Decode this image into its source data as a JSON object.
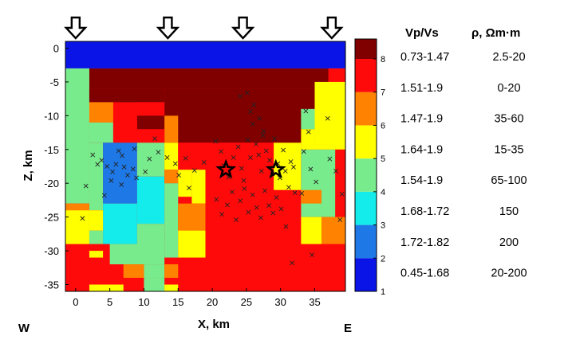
{
  "chart_data": {
    "type": "heatmap",
    "xlabel": "X, km",
    "ylabel": "Z, km",
    "xlim": [
      -1.5,
      39.5
    ],
    "ylim": [
      -36,
      1
    ],
    "xticks": [
      0,
      5,
      10,
      15,
      20,
      25,
      30,
      35
    ],
    "yticks": [
      0,
      -5,
      -10,
      -15,
      -20,
      -25,
      -30,
      -35
    ],
    "west_label": "W",
    "east_label": "E",
    "arrows_x": [
      0,
      13.5,
      24.5,
      37.5
    ],
    "colorbar": {
      "min": 1,
      "max": 8.6,
      "ticks": [
        1,
        2,
        3,
        4,
        5,
        6,
        7,
        8
      ],
      "classes": [
        {
          "from": 1,
          "to": 2,
          "color": "#0a14e6"
        },
        {
          "from": 2,
          "to": 3,
          "color": "#1e78e6"
        },
        {
          "from": 3,
          "to": 4,
          "color": "#14ecec"
        },
        {
          "from": 4,
          "to": 5,
          "color": "#78eb8c"
        },
        {
          "from": 5,
          "to": 6,
          "color": "#ffff00"
        },
        {
          "from": 6,
          "to": 7,
          "color": "#ff8200"
        },
        {
          "from": 7,
          "to": 8,
          "color": "#ff0a0a"
        },
        {
          "from": 8,
          "to": 8.6,
          "color": "#800000"
        }
      ]
    },
    "cells": [
      {
        "x": [
          -1.5,
          39.5
        ],
        "z": [
          -36,
          -3
        ],
        "v": 7
      },
      {
        "x": [
          -1.5,
          39.5
        ],
        "z": [
          -3,
          1
        ],
        "v": 1
      },
      {
        "x": [
          37,
          39.5
        ],
        "z": [
          -5,
          -3
        ],
        "v": 7
      },
      {
        "x": [
          2,
          37
        ],
        "z": [
          -6,
          -3
        ],
        "v": 8
      },
      {
        "x": [
          -1.5,
          2
        ],
        "z": [
          -23,
          -3
        ],
        "v": 4
      },
      {
        "x": [
          2,
          13
        ],
        "z": [
          -8,
          -6
        ],
        "v": 8
      },
      {
        "x": [
          13,
          36
        ],
        "z": [
          -14,
          -6
        ],
        "v": 8
      },
      {
        "x": [
          2,
          5.5
        ],
        "z": [
          -11,
          -8
        ],
        "v": 6
      },
      {
        "x": [
          9,
          13
        ],
        "z": [
          -10,
          -8
        ],
        "v": 7
      },
      {
        "x": [
          9,
          13
        ],
        "z": [
          -12,
          -10
        ],
        "v": 8
      },
      {
        "x": [
          13,
          15
        ],
        "z": [
          -14,
          -10
        ],
        "v": 6
      },
      {
        "x": [
          2,
          5.5
        ],
        "z": [
          -14,
          -11
        ],
        "v": 4
      },
      {
        "x": [
          5.5,
          9
        ],
        "z": [
          -14,
          -11
        ],
        "v": 7
      },
      {
        "x": [
          9,
          13
        ],
        "z": [
          -14,
          -12
        ],
        "v": 7
      },
      {
        "x": [
          2,
          4
        ],
        "z": [
          -24,
          -14
        ],
        "v": 4
      },
      {
        "x": [
          4,
          9
        ],
        "z": [
          -23,
          -14
        ],
        "v": 2
      },
      {
        "x": [
          9,
          13
        ],
        "z": [
          -19,
          -14
        ],
        "v": 4
      },
      {
        "x": [
          13,
          15
        ],
        "z": [
          -18,
          -14
        ],
        "v": 5
      },
      {
        "x": [
          15,
          19
        ],
        "z": [
          -18,
          -14
        ],
        "v": 7
      },
      {
        "x": [
          19,
          29
        ],
        "z": [
          -19,
          -14
        ],
        "v": 7
      },
      {
        "x": [
          29,
          33
        ],
        "z": [
          -21,
          -14
        ],
        "v": 5
      },
      {
        "x": [
          33,
          38
        ],
        "z": [
          -25,
          -15
        ],
        "v": 4
      },
      {
        "x": [
          9,
          13
        ],
        "z": [
          -26,
          -19
        ],
        "v": 3
      },
      {
        "x": [
          13,
          15
        ],
        "z": [
          -20,
          -18
        ],
        "v": 6
      },
      {
        "x": [
          15,
          17
        ],
        "z": [
          -22,
          -18
        ],
        "v": 5
      },
      {
        "x": [
          13,
          15
        ],
        "z": [
          -31,
          -20
        ],
        "v": 4
      },
      {
        "x": [
          17,
          19
        ],
        "z": [
          -23,
          -18
        ],
        "v": 5
      },
      {
        "x": [
          33,
          36
        ],
        "z": [
          -23,
          -21
        ],
        "v": 6
      },
      {
        "x": [
          -1.5,
          2
        ],
        "z": [
          -24,
          -23
        ],
        "v": 6
      },
      {
        "x": [
          4,
          9
        ],
        "z": [
          -29,
          -23
        ],
        "v": 3
      },
      {
        "x": [
          -1.5,
          2
        ],
        "z": [
          -29,
          -24
        ],
        "v": 5
      },
      {
        "x": [
          2,
          4
        ],
        "z": [
          -27,
          -24
        ],
        "v": 5
      },
      {
        "x": [
          15,
          19
        ],
        "z": [
          -27,
          -23
        ],
        "v": 6
      },
      {
        "x": [
          9,
          13
        ],
        "z": [
          -30,
          -26
        ],
        "v": 4
      },
      {
        "x": [
          2,
          4
        ],
        "z": [
          -29,
          -27
        ],
        "v": 4
      },
      {
        "x": [
          15,
          19
        ],
        "z": [
          -31,
          -27
        ],
        "v": 5
      },
      {
        "x": [
          33,
          36
        ],
        "z": [
          -29,
          -25
        ],
        "v": 5
      },
      {
        "x": [
          36,
          39.5
        ],
        "z": [
          -29,
          -25
        ],
        "v": 6
      },
      {
        "x": [
          33,
          35
        ],
        "z": [
          -12,
          -9
        ],
        "v": 4
      },
      {
        "x": [
          35,
          39.5
        ],
        "z": [
          -15,
          -5
        ],
        "v": 5
      },
      {
        "x": [
          33,
          35
        ],
        "z": [
          -15,
          -12
        ],
        "v": 5
      },
      {
        "x": [
          2,
          4
        ],
        "z": [
          -31,
          -30
        ],
        "v": 5
      },
      {
        "x": [
          5,
          13
        ],
        "z": [
          -32,
          -29
        ],
        "v": 4
      },
      {
        "x": [
          10,
          13
        ],
        "z": [
          -34,
          -32
        ],
        "v": 4
      },
      {
        "x": [
          7,
          10
        ],
        "z": [
          -34,
          -32
        ],
        "v": 6
      },
      {
        "x": [
          13,
          15
        ],
        "z": [
          -34,
          -32
        ],
        "v": 6
      },
      {
        "x": [
          2,
          7
        ],
        "z": [
          -36,
          -35
        ],
        "v": 5
      },
      {
        "x": [
          10,
          13
        ],
        "z": [
          -36,
          -34
        ],
        "v": 4
      },
      {
        "x": [
          13,
          15
        ],
        "z": [
          -36,
          -35
        ],
        "v": 5
      }
    ],
    "events": [
      [
        2.5,
        -15.8
      ],
      [
        3.2,
        -17.2
      ],
      [
        3.8,
        -16.6
      ],
      [
        4.6,
        -17.5
      ],
      [
        5.4,
        -18.3
      ],
      [
        5.9,
        -17.2
      ],
      [
        6.8,
        -15.9
      ],
      [
        7.1,
        -17.6
      ],
      [
        7.6,
        -18.8
      ],
      [
        8.4,
        -17.9
      ],
      [
        5.2,
        -19.6
      ],
      [
        6.7,
        -20.2
      ],
      [
        8.9,
        -19.2
      ],
      [
        10.2,
        -18.3
      ],
      [
        10.8,
        -16.4
      ],
      [
        11.6,
        -13.4
      ],
      [
        12.1,
        -15.4
      ],
      [
        13.4,
        -16.2
      ],
      [
        14.6,
        -17.1
      ],
      [
        15.1,
        -18.8
      ],
      [
        1.5,
        -20.4
      ],
      [
        1,
        -25.2
      ],
      [
        8.6,
        -14.9
      ],
      [
        6.3,
        -15.2
      ],
      [
        4.2,
        -21.8
      ],
      [
        20.5,
        -13.8
      ],
      [
        21.3,
        -15.3
      ],
      [
        21.7,
        -17.4
      ],
      [
        22.4,
        -19.1
      ],
      [
        23.1,
        -16.2
      ],
      [
        23.8,
        -14.6
      ],
      [
        24.3,
        -17.8
      ],
      [
        24.6,
        -19.6
      ],
      [
        25.2,
        -13.6
      ],
      [
        25.6,
        -16.2
      ],
      [
        25.9,
        -11.2
      ],
      [
        26.4,
        -14.2
      ],
      [
        26.8,
        -15.8
      ],
      [
        27.2,
        -18.2
      ],
      [
        27.5,
        -12.3
      ],
      [
        27.9,
        -15.2
      ],
      [
        28.4,
        -16.6
      ],
      [
        28.8,
        -18.6
      ],
      [
        29.1,
        -13.4
      ],
      [
        29.6,
        -17.1
      ],
      [
        29.9,
        -19.2
      ],
      [
        30.4,
        -15.1
      ],
      [
        30.7,
        -18.2
      ],
      [
        31.2,
        -20.6
      ],
      [
        31.5,
        -16.8
      ],
      [
        31.9,
        -17.6
      ],
      [
        32.1,
        -21.4
      ],
      [
        20.6,
        -22.4
      ],
      [
        21.4,
        -24.6
      ],
      [
        22.2,
        -23.2
      ],
      [
        22.9,
        -21.3
      ],
      [
        23.5,
        -25.4
      ],
      [
        24.1,
        -22.6
      ],
      [
        24.7,
        -20.8
      ],
      [
        25.3,
        -24.3
      ],
      [
        25.9,
        -21.7
      ],
      [
        26.5,
        -23.6
      ],
      [
        27.1,
        -25.1
      ],
      [
        27.7,
        -21.1
      ],
      [
        28.3,
        -23.3
      ],
      [
        28.9,
        -24.4
      ],
      [
        29.4,
        -22.1
      ],
      [
        30.1,
        -23.8
      ],
      [
        30.8,
        -26.4
      ],
      [
        25.1,
        -6.6
      ],
      [
        26.1,
        -8.4
      ],
      [
        25.6,
        -9.4
      ],
      [
        26.9,
        -10.4
      ],
      [
        27.4,
        -12.9
      ],
      [
        24.1,
        -7.1
      ],
      [
        33.7,
        -9.3
      ],
      [
        34.1,
        -12.4
      ],
      [
        33.4,
        -15.3
      ],
      [
        34.4,
        -17.9
      ],
      [
        35.2,
        -19.8
      ],
      [
        36.9,
        -10.4
      ],
      [
        37.2,
        -16.4
      ],
      [
        33.1,
        -21.5
      ],
      [
        34.6,
        -30.6
      ],
      [
        31.7,
        -31.8
      ],
      [
        38.7,
        -25.4
      ],
      [
        38.1,
        -18.2
      ],
      [
        39,
        -21.6
      ],
      [
        16.1,
        -16.3
      ],
      [
        17.4,
        -18.1
      ],
      [
        18.8,
        -16.9
      ],
      [
        16.6,
        -20.7
      ]
    ],
    "stars": [
      [
        22,
        -18
      ],
      [
        29.3,
        -18
      ]
    ]
  },
  "legend": {
    "header_vpvs": "Vp/Vs",
    "header_rho": "ρ,  Ωm·m",
    "rows": [
      {
        "vpvs": "0.73-1.47",
        "rho": "2.5-20"
      },
      {
        "vpvs": "1.51-1.9",
        "rho": "0-20"
      },
      {
        "vpvs": "1.47-1.9",
        "rho": "35-60"
      },
      {
        "vpvs": "1.64-1.9",
        "rho": "15-35"
      },
      {
        "vpvs": "1.54-1.9",
        "rho": "65-100"
      },
      {
        "vpvs": "1.68-1.72",
        "rho": "150"
      },
      {
        "vpvs": "1.72-1.82",
        "rho": "200"
      },
      {
        "vpvs": "0.45-1.68",
        "rho": "20-200"
      }
    ]
  }
}
